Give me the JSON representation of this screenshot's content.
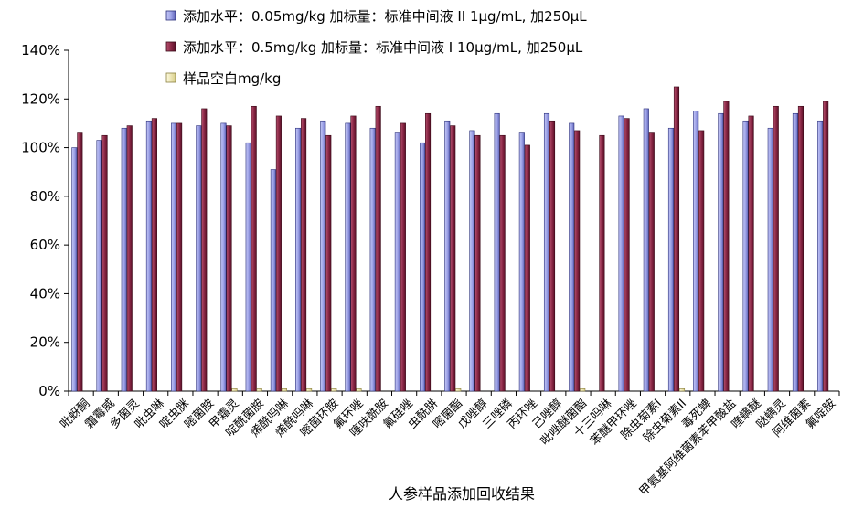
{
  "chart_data": {
    "type": "bar",
    "title": "",
    "xlabel": "人参样品添加回收结果",
    "ylabel": "",
    "ylim": [
      0,
      1.4
    ],
    "yticks": [
      "0%",
      "20%",
      "40%",
      "60%",
      "80%",
      "100%",
      "120%",
      "140%"
    ],
    "grid": false,
    "legend_position": "top-left",
    "categories": [
      "吡蚜酮",
      "霜霉威",
      "多菌灵",
      "吡虫啉",
      "啶虫脒",
      "嘧菌胺",
      "甲霜灵",
      "啶酰菌胺",
      "烯酰吗啉",
      "烯酰吗啉",
      "嘧菌环胺",
      "氟环唑",
      "噻呋酰胺",
      "氟硅唑",
      "虫酰肼",
      "嘧菌酯",
      "戊唑醇",
      "三唑磷",
      "丙环唑",
      "己唑醇",
      "吡唑醚菌酯",
      "十三吗啉",
      "苯醚甲环唑",
      "除虫菊素I",
      "除虫菊素II",
      "毒死蜱",
      "甲氨基阿维菌素苯甲酸盐",
      "喹螨醚",
      "哒螨灵",
      "阿维菌素",
      "氟啶胺"
    ],
    "series": [
      {
        "name": "添加水平：0.05mg/kg 加标量：标准中间液 II 1μg/mL, 加250μL",
        "color": "#9fa4e8",
        "values": [
          1.0,
          1.03,
          1.08,
          1.11,
          1.1,
          1.09,
          1.1,
          1.02,
          0.91,
          1.08,
          1.11,
          1.1,
          1.08,
          1.06,
          1.02,
          1.11,
          1.07,
          1.14,
          1.06,
          1.14,
          1.1,
          0.0,
          1.13,
          1.16,
          1.08,
          1.15,
          1.14,
          1.11,
          1.08,
          1.14,
          1.11
        ]
      },
      {
        "name": "添加水平：0.5mg/kg 加标量：标准中间液 I 10μg/mL, 加250μL",
        "color": "#8b2846",
        "values": [
          1.06,
          1.05,
          1.09,
          1.12,
          1.1,
          1.16,
          1.09,
          1.17,
          1.13,
          1.12,
          1.05,
          1.13,
          1.17,
          1.1,
          1.14,
          1.09,
          1.05,
          1.05,
          1.01,
          1.11,
          1.07,
          1.05,
          1.12,
          1.06,
          1.25,
          1.07,
          1.19,
          1.13,
          1.17,
          1.17,
          1.19
        ]
      },
      {
        "name": "样品空白mg/kg",
        "color": "#f8f3c2",
        "values": [
          0,
          0,
          0,
          0,
          0,
          0,
          0.01,
          0.01,
          0.01,
          0.01,
          0.01,
          0.01,
          0,
          0,
          0,
          0.01,
          0,
          0,
          0,
          0,
          0.01,
          0,
          0,
          0,
          0.01,
          0,
          0,
          0,
          0,
          0,
          0
        ]
      }
    ]
  }
}
